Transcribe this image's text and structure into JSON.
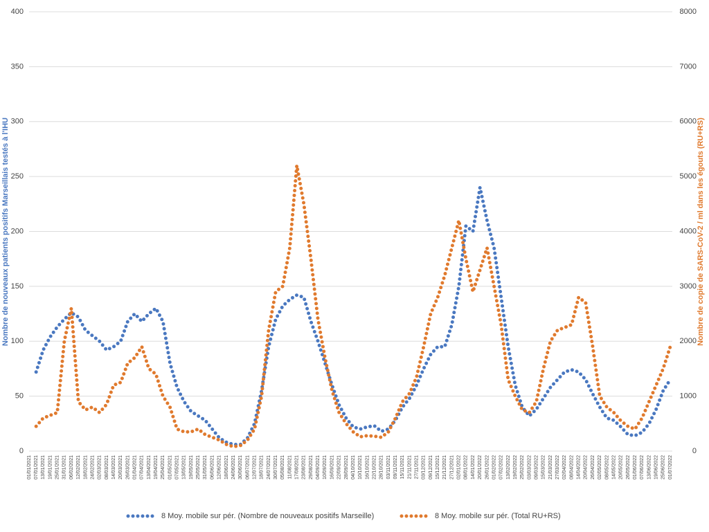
{
  "chart_data": {
    "type": "line",
    "y_label": "Nombre de nouveaux patients positifs Marseillais testés à l'IHU",
    "y2_label": "Nombre de copie de SARS-CoV-2 / ml dans les égouts (RU+RS)",
    "categories": [
      "01/01/2021",
      "07/01/2021",
      "13/01/2021",
      "19/01/2021",
      "25/01/2021",
      "31/01/2021",
      "06/02/2021",
      "12/02/2021",
      "18/02/2021",
      "24/02/2021",
      "02/03/2021",
      "08/03/2021",
      "14/03/2021",
      "20/03/2021",
      "26/03/2021",
      "01/04/2021",
      "07/04/2021",
      "13/04/2021",
      "19/04/2021",
      "25/04/2021",
      "01/05/2021",
      "07/05/2021",
      "13/05/2021",
      "19/05/2021",
      "25/05/2021",
      "31/05/2021",
      "06/06/2021",
      "12/06/2021",
      "18/06/2021",
      "24/06/2021",
      "30/06/2021",
      "06/07/2021",
      "12/07/2021",
      "18/07/2021",
      "24/07/2021",
      "30/07/2021",
      "05/08/2021",
      "11/08/2021",
      "17/08/2021",
      "23/08/2021",
      "29/08/2021",
      "04/09/2021",
      "10/09/2021",
      "16/09/2021",
      "22/09/2021",
      "28/09/2021",
      "04/10/2021",
      "10/10/2021",
      "16/10/2021",
      "22/10/2021",
      "28/10/2021",
      "03/11/2021",
      "09/11/2021",
      "15/11/2021",
      "21/11/2021",
      "27/11/2021",
      "03/12/2021",
      "09/12/2021",
      "15/12/2021",
      "21/12/2021",
      "27/12/2021",
      "02/01/2022",
      "08/01/2022",
      "14/01/2022",
      "20/01/2022",
      "26/01/2022",
      "01/02/2022",
      "07/02/2022",
      "13/02/2022",
      "19/02/2022",
      "25/02/2022",
      "03/03/2022",
      "09/03/2022",
      "15/03/2022",
      "21/03/2022",
      "27/03/2022",
      "02/04/2022",
      "08/04/2022",
      "14/04/2022",
      "20/04/2022",
      "26/04/2022",
      "02/05/2022",
      "08/05/2022",
      "14/05/2022",
      "20/05/2022",
      "26/05/2022",
      "01/06/2022",
      "07/06/2022",
      "13/06/2022",
      "19/06/2022",
      "25/06/2022",
      "01/07/2022"
    ],
    "series": [
      {
        "name": "8 Moy. mobile sur pér. (Nombre de nouveaux positifs Marseille)",
        "color": "#4a78c0",
        "axis": "y",
        "values": [
          null,
          72,
          92,
          104,
          113,
          120,
          126,
          122,
          110,
          105,
          100,
          92,
          95,
          100,
          118,
          125,
          118,
          125,
          130,
          118,
          80,
          58,
          45,
          36,
          32,
          28,
          20,
          12,
          8,
          6,
          6,
          12,
          25,
          55,
          95,
          120,
          132,
          138,
          142,
          140,
          118,
          100,
          80,
          60,
          42,
          30,
          22,
          20,
          22,
          23,
          18,
          20,
          28,
          40,
          48,
          60,
          75,
          88,
          95,
          95,
          115,
          150,
          205,
          200,
          240,
          210,
          185,
          140,
          95,
          60,
          40,
          32,
          38,
          48,
          58,
          65,
          72,
          74,
          72,
          65,
          52,
          40,
          30,
          28,
          22,
          15,
          14,
          17,
          25,
          38,
          55,
          65
        ]
      },
      {
        "name": "8 Moy. mobile sur pér. (Total RU+RS)",
        "color": "#e07a2e",
        "axis": "y2",
        "values": [
          null,
          450,
          600,
          650,
          700,
          2000,
          2600,
          900,
          750,
          800,
          700,
          850,
          1200,
          1250,
          1600,
          1700,
          1900,
          1500,
          1400,
          1000,
          800,
          400,
          350,
          350,
          400,
          300,
          250,
          200,
          120,
          80,
          100,
          200,
          400,
          1000,
          2200,
          2900,
          3000,
          3700,
          5200,
          4500,
          3500,
          2400,
          1700,
          1100,
          700,
          500,
          350,
          260,
          280,
          270,
          250,
          350,
          600,
          900,
          1050,
          1350,
          1900,
          2500,
          2800,
          3200,
          3700,
          4200,
          3500,
          2900,
          3300,
          3700,
          3000,
          2300,
          1300,
          1000,
          750,
          700,
          900,
          1500,
          2000,
          2200,
          2250,
          2300,
          2800,
          2700,
          1900,
          1000,
          800,
          700,
          550,
          450,
          400,
          600,
          900,
          1200,
          1500,
          1900
        ]
      }
    ],
    "ylim": [
      0,
      400
    ],
    "yticks": [
      0,
      50,
      100,
      150,
      200,
      250,
      300,
      350,
      400
    ],
    "y2lim": [
      0,
      8000
    ],
    "y2ticks": [
      0,
      1000,
      2000,
      3000,
      4000,
      5000,
      6000,
      7000,
      8000
    ],
    "grid": true
  }
}
